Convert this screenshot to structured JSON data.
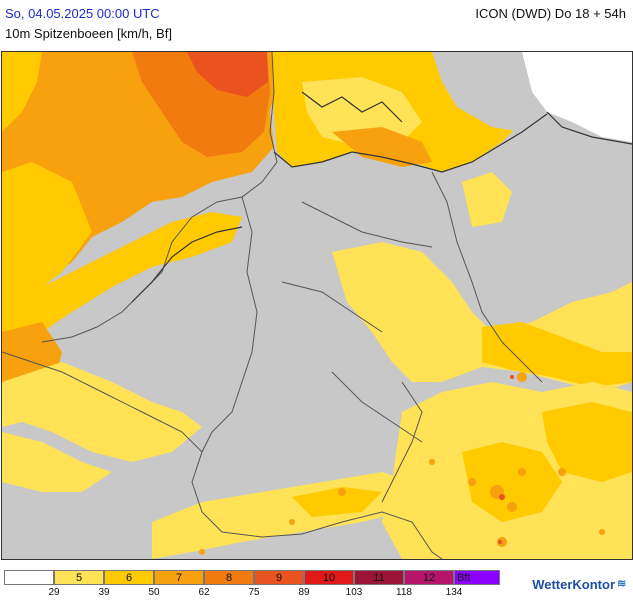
{
  "header": {
    "datetime": "So, 04.05.2025 00:00 UTC",
    "subtitle": "10m Spitzenboeen [km/h, Bf]",
    "model_run": "ICON (DWD) Do 18 + 54h"
  },
  "legend": {
    "categories": [
      "",
      "5",
      "6",
      "7",
      "8",
      "9",
      "10",
      "11",
      "12",
      "Bft"
    ],
    "colors": [
      "#ffffff",
      "#ffe255",
      "#ffca00",
      "#f7a10f",
      "#f27b0f",
      "#e9531f",
      "#e01818",
      "#9c1539",
      "#b7146c",
      "#8c00ff"
    ],
    "thresholds": [
      "29",
      "39",
      "50",
      "62",
      "75",
      "89",
      "103",
      "118",
      "134"
    ]
  },
  "brand": {
    "name": "WetterKontor"
  },
  "map": {
    "background_color": "#c8c8c8",
    "sea_color": "#ffffff"
  }
}
